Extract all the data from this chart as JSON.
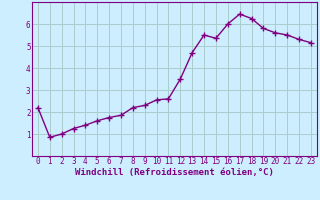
{
  "x": [
    0,
    1,
    2,
    3,
    4,
    5,
    6,
    7,
    8,
    9,
    10,
    11,
    12,
    13,
    14,
    15,
    16,
    17,
    18,
    19,
    20,
    21,
    22,
    23
  ],
  "y": [
    2.2,
    0.85,
    1.0,
    1.25,
    1.4,
    1.6,
    1.75,
    1.85,
    2.2,
    2.3,
    2.55,
    2.6,
    3.5,
    4.7,
    5.5,
    5.35,
    6.0,
    6.45,
    6.25,
    5.8,
    5.6,
    5.5,
    5.3,
    5.15
  ],
  "line_color": "#800080",
  "marker": "+",
  "marker_size": 4,
  "bg_color": "#cceeff",
  "grid_color": "#aacccc",
  "xlabel": "Windchill (Refroidissement éolien,°C)",
  "xlim": [
    -0.5,
    23.5
  ],
  "ylim": [
    0,
    7
  ],
  "xticks": [
    0,
    1,
    2,
    3,
    4,
    5,
    6,
    7,
    8,
    9,
    10,
    11,
    12,
    13,
    14,
    15,
    16,
    17,
    18,
    19,
    20,
    21,
    22,
    23
  ],
  "yticks": [
    1,
    2,
    3,
    4,
    5,
    6
  ],
  "tick_fontsize": 5.5,
  "xlabel_fontsize": 6.5,
  "spine_color": "#800080",
  "linewidth": 1.0,
  "markeredgewidth": 1.0
}
